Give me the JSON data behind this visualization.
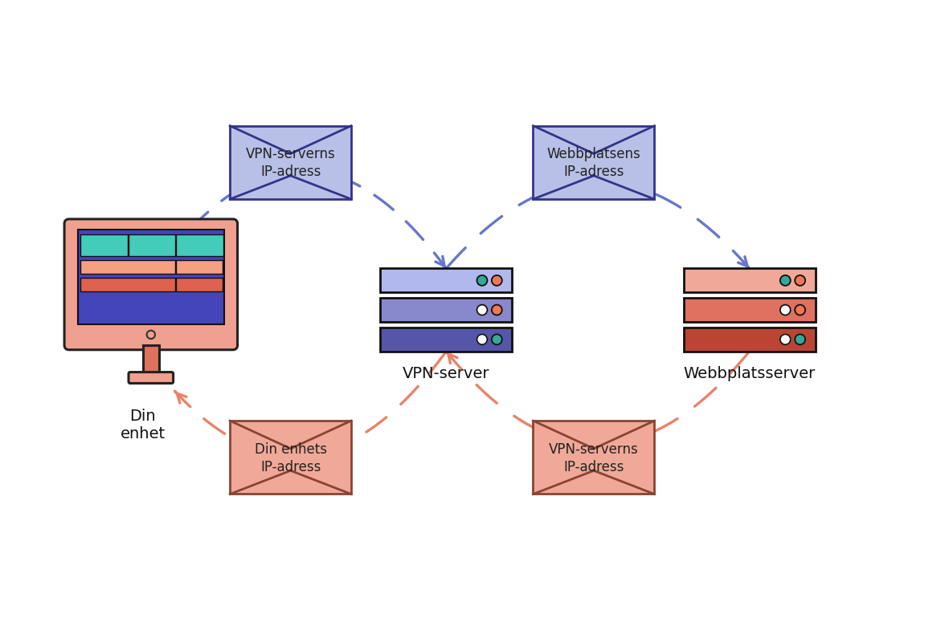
{
  "bg_color": "#ffffff",
  "device_label": "Din\nenhet",
  "vpn_server_label": "VPN-server",
  "website_server_label": "Webbplatsserver",
  "envelope_top_left_label": "VPN-serverns\nIP-adress",
  "envelope_top_right_label": "Webbplatsens\nIP-adress",
  "envelope_bottom_left_label": "Din enhets\nIP-adress",
  "envelope_bottom_right_label": "VPN-serverns\nIP-adress",
  "blue_arrow_color": "#6677cc",
  "salmon_arrow_color": "#e8836a",
  "envelope_blue_fill": "#b8c0e8",
  "envelope_blue_stroke": "#333388",
  "envelope_salmon_fill": "#f0a898",
  "envelope_salmon_stroke": "#884433",
  "device_monitor_fill": "#f0a090",
  "device_screen_fill": "#4444bb",
  "device_teal": "#44ccbb",
  "device_stand_color": "#e07060",
  "vpn_server_colors": [
    "#b0b8ee",
    "#8888cc",
    "#5555aa"
  ],
  "website_server_colors": [
    "#f0a898",
    "#e07060",
    "#bb4433"
  ],
  "dot_orange": "#ee7755",
  "dot_teal": "#33aa99",
  "dot_white": "#ffffff",
  "label_fontsize": 14,
  "env_fontsize": 12
}
